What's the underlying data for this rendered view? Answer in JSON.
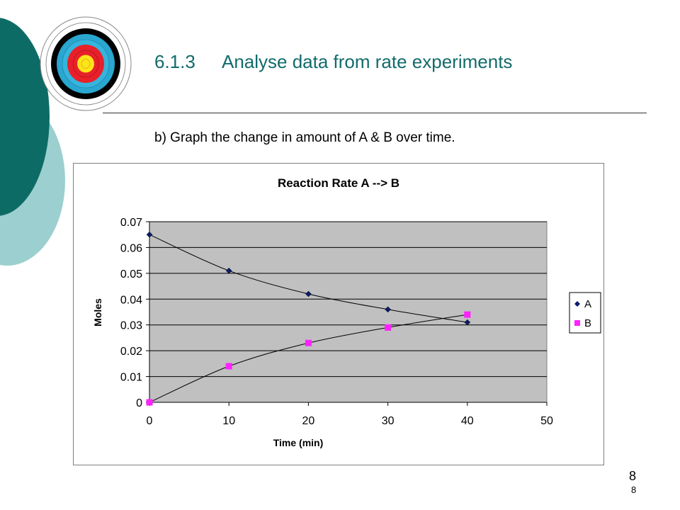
{
  "header": {
    "section_number": "6.1.3",
    "title": "Analyse data from rate experiments",
    "subtitle": "b) Graph the change in amount of A & B over time."
  },
  "page_number": "8",
  "page_number_small": "8",
  "colors": {
    "teal_dark": "#0d6b66",
    "teal_light": "#9ccfcf",
    "title_color": "#136b6b",
    "plot_bg": "#c0c0c0",
    "series_A": "#0d1b6e",
    "series_B": "#ff22ff"
  },
  "chart_data": {
    "type": "scatter",
    "title": "Reaction Rate A --> B",
    "xlabel": "Time (min)",
    "ylabel": "Moles",
    "xlim": [
      0,
      50
    ],
    "ylim": [
      0,
      0.07
    ],
    "x_ticks": [
      "0",
      "10",
      "20",
      "30",
      "40",
      "50"
    ],
    "y_ticks": [
      "0",
      "0.01",
      "0.02",
      "0.03",
      "0.04",
      "0.05",
      "0.06",
      "0.07"
    ],
    "grid": true,
    "legend": "right",
    "trendlines": true,
    "series": [
      {
        "name": "A",
        "marker": "diamond",
        "x": [
          0,
          10,
          20,
          30,
          40
        ],
        "y": [
          0.065,
          0.051,
          0.042,
          0.036,
          0.031
        ]
      },
      {
        "name": "B",
        "marker": "square",
        "x": [
          0,
          10,
          20,
          30,
          40
        ],
        "y": [
          0,
          0.014,
          0.023,
          0.029,
          0.034
        ]
      }
    ]
  }
}
